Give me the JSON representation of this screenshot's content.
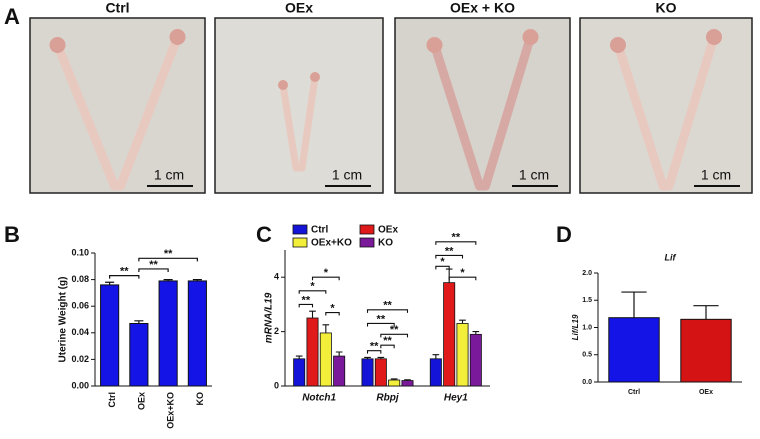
{
  "panel_letters": [
    "A",
    "B",
    "C",
    "D"
  ],
  "photos": [
    {
      "label": "Ctrl",
      "scale": "1 cm"
    },
    {
      "label": "OEx",
      "scale": "1 cm"
    },
    {
      "label": "OEx + KO",
      "scale": "1 cm"
    },
    {
      "label": "KO",
      "scale": "1 cm"
    }
  ],
  "chart_data": [
    {
      "type": "bar",
      "ylabel": "Uterine Weight (g)",
      "categories": [
        "Ctrl",
        "OEx",
        "OEx+KO",
        "KO"
      ],
      "values": [
        0.076,
        0.047,
        0.079,
        0.079
      ],
      "errors": [
        0.002,
        0.002,
        0.001,
        0.001
      ],
      "color": "#1414e6",
      "ylim": [
        0,
        0.1
      ],
      "yticks": [
        {
          "value": 0,
          "label": "0.00"
        },
        {
          "value": 0.02,
          "label": "0.02"
        },
        {
          "value": 0.04,
          "label": "0.04"
        },
        {
          "value": 0.06,
          "label": "0.06"
        },
        {
          "value": 0.08,
          "label": "0.08"
        },
        {
          "value": 0.1,
          "label": "0.10"
        }
      ],
      "annotations": [
        "**",
        "**",
        "**"
      ]
    },
    {
      "type": "grouped_bar",
      "ylabel": "mRNA/L19",
      "categories": [
        "Notch1",
        "Rbpj",
        "Hey1"
      ],
      "series": [
        {
          "name": "Ctrl",
          "color": "#1414d8",
          "values": [
            1.0,
            1.0,
            1.0
          ],
          "errors": [
            0.1,
            0.05,
            0.15
          ]
        },
        {
          "name": "OEx",
          "color": "#e01a1a",
          "values": [
            2.5,
            1.0,
            3.8
          ],
          "errors": [
            0.25,
            0.05,
            0.5
          ]
        },
        {
          "name": "OEx+KO",
          "color": "#f2ee3a",
          "values": [
            1.95,
            0.22,
            2.3
          ],
          "errors": [
            0.3,
            0.04,
            0.12
          ]
        },
        {
          "name": "KO",
          "color": "#7a1a9a",
          "values": [
            1.1,
            0.2,
            1.9
          ],
          "errors": [
            0.15,
            0.03,
            0.1
          ]
        }
      ],
      "ylim": [
        0,
        5
      ],
      "yticks": [
        0,
        2,
        4
      ],
      "annotations": [
        "**",
        "*",
        "*",
        "*",
        "**",
        "**",
        "**",
        "**",
        "**",
        "**",
        "**",
        "*",
        "*"
      ]
    },
    {
      "type": "bar",
      "title": "Lif",
      "ylabel": "Lif/L19",
      "categories": [
        "Ctrl",
        "OEx"
      ],
      "values": [
        1.18,
        1.15
      ],
      "errors": [
        0.47,
        0.25
      ],
      "colors": [
        "#1414e6",
        "#d41414"
      ],
      "ylim": [
        0,
        2
      ],
      "yticks": [
        {
          "value": 0,
          "label": "0.0"
        },
        {
          "value": 0.5,
          "label": "0.5"
        },
        {
          "value": 1,
          "label": "1.0"
        },
        {
          "value": 1.5,
          "label": "1.5"
        },
        {
          "value": 2,
          "label": "2.0"
        }
      ]
    }
  ]
}
